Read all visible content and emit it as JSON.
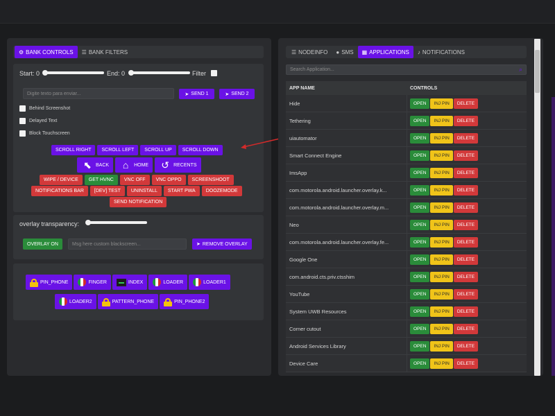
{
  "left": {
    "tabs": [
      {
        "label": "BANK CONTROLS",
        "icon": "cogs-icon"
      },
      {
        "label": "BANK FILTERS",
        "icon": "list-icon"
      }
    ],
    "start_label": "Start: 0",
    "end_label": "End: 0",
    "filter_label": "Filter",
    "text_placeholder": "Digite texto para enviar...",
    "send1": "SEND 1",
    "send2": "SEND 2",
    "checks": [
      "Behind Screenshot",
      "Delayed Text",
      "Block Touchscreen"
    ],
    "scroll_buttons": [
      "SCROLL RIGHT",
      "SCROLL LEFT",
      "SCROLL UP",
      "SCROLL DOWN"
    ],
    "nav_buttons": [
      "BACK",
      "HOME",
      "RECENTS"
    ],
    "red_row1": [
      "WIPE / DEVICE",
      "GET HVNC",
      "VNC OFF",
      "VNC OPPO",
      "SCREENSHOOT"
    ],
    "red_row2": [
      "NOTIFICATIONS BAR",
      "[DEV] TEST",
      "UNINSTALL",
      "START PWA",
      "DOOZEMODE"
    ],
    "send_notification": "SEND NOTIFICATION",
    "overlay_label": "overlay transparency:",
    "overlay_on": "OVERLAY ON",
    "overlay_placeholder": "Msg here custom blackscreen...",
    "remove_overlay": "REMOVE OVERLAY",
    "inject_row1": [
      "PIN_PHONE",
      "FINGER",
      "INDEX",
      "LOADER",
      "LOADER1"
    ],
    "inject_row2": [
      "LOADER2",
      "PATTERN_PHONE",
      "PIN_PHONE2"
    ]
  },
  "right": {
    "tabs": [
      {
        "label": "NODEINFO",
        "icon": "list-icon"
      },
      {
        "label": "SMS",
        "icon": "chat-icon"
      },
      {
        "label": "APPLICATIONS",
        "icon": "grid-icon"
      },
      {
        "label": "NOTIFICATIONS",
        "icon": "bell-icon"
      }
    ],
    "search_placeholder": "Search Application...",
    "col_app": "APP NAME",
    "col_controls": "CONTROLS",
    "btn_open": "OPEN",
    "btn_inj": "INJ PIN",
    "btn_delete": "DELETE",
    "apps": [
      "Hide",
      "Tethering",
      "uiautomator",
      "Smart Connect Engine",
      "ImsApp",
      "com.motorola.android.launcher.overlay.k...",
      "com.motorola.android.launcher.overlay.m...",
      "Neo",
      "com.motorola.android.launcher.overlay.fe...",
      "Google One",
      "com.android.cts.priv.ctsshim",
      "YouTube",
      "System UWB Resources",
      "Corner cutout",
      "Android Services Library",
      "Device Care"
    ]
  },
  "colors": {
    "purple": "#6a12e6",
    "red": "#d2393a",
    "green": "#2a8c3a",
    "yellow": "#f0c419"
  }
}
